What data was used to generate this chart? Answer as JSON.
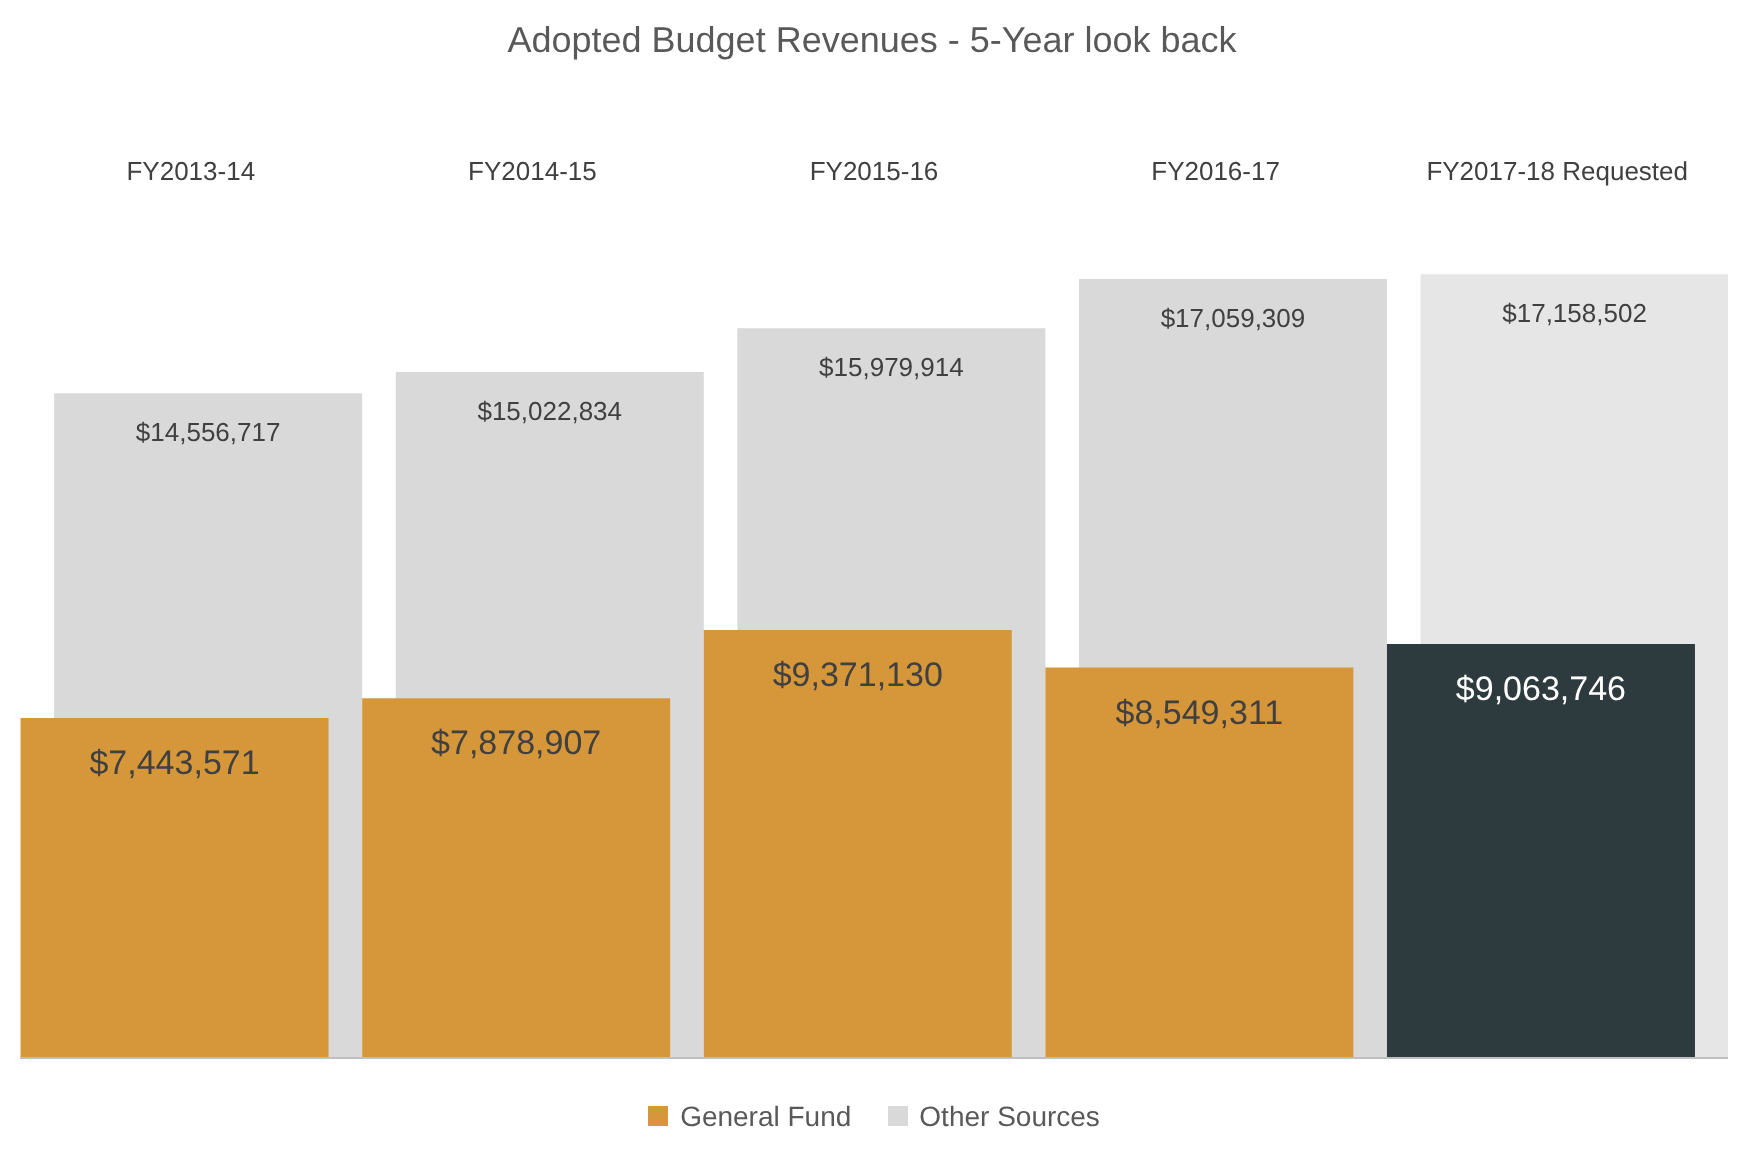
{
  "chart_data": {
    "type": "bar",
    "title": "Adopted Budget Revenues - 5-Year look back",
    "categories": [
      "FY2013-14",
      "FY2014-15",
      "FY2015-16",
      "FY2016-17",
      "FY2017-18 Requested"
    ],
    "series": [
      {
        "name": "General Fund",
        "color": "#d6973b",
        "colors": [
          "#d6973b",
          "#d6973b",
          "#d6973b",
          "#d6973b",
          "#2e3b3e"
        ],
        "values": [
          7443571,
          7878907,
          9371130,
          8549311,
          9063746
        ],
        "value_labels": [
          "$7,443,571",
          "$7,878,907",
          "$9,371,130",
          "$8,549,311",
          "$9,063,746"
        ]
      },
      {
        "name": "Other Sources",
        "color": "#d9d9d9",
        "colors": [
          "#d9d9d9",
          "#d9d9d9",
          "#d9d9d9",
          "#d9d9d9",
          "#e6e6e6"
        ],
        "values": [
          14556717,
          15022834,
          15979914,
          17059309,
          17158502
        ],
        "value_labels": [
          "$14,556,717",
          "$15,022,834",
          "$15,979,914",
          "$17,059,309",
          "$17,158,502"
        ]
      }
    ],
    "legend": "bottom"
  }
}
